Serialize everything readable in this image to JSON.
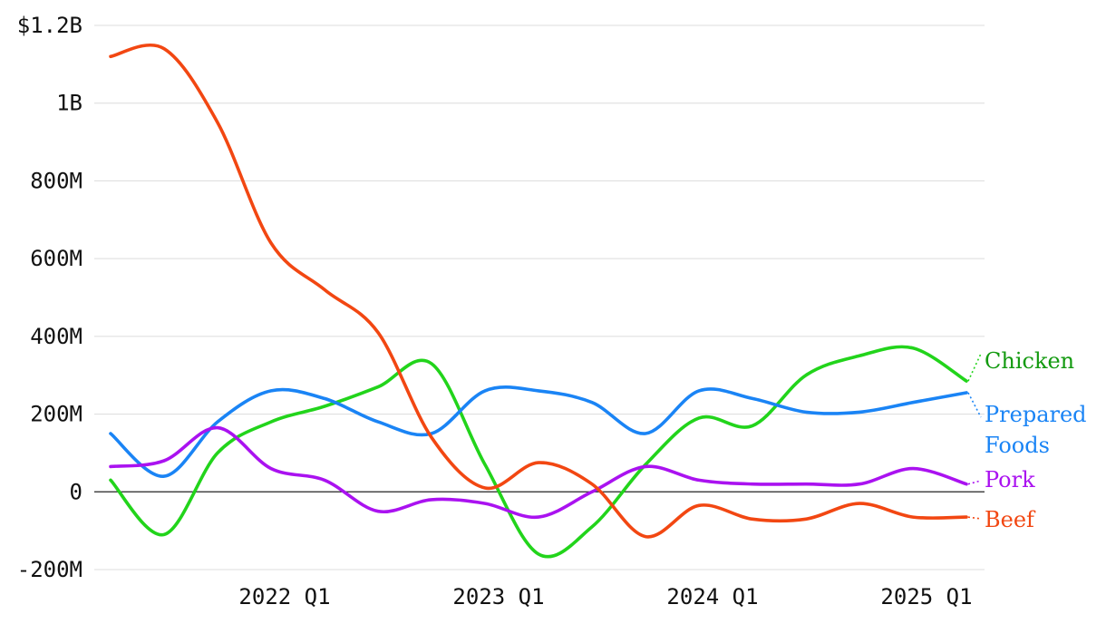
{
  "chart_data": {
    "type": "line",
    "y_ticks": [
      {
        "value": 1200000000,
        "label": "$1.2B"
      },
      {
        "value": 1000000000,
        "label": "1B"
      },
      {
        "value": 800000000,
        "label": "800M"
      },
      {
        "value": 600000000,
        "label": "600M"
      },
      {
        "value": 400000000,
        "label": "400M"
      },
      {
        "value": 200000000,
        "label": "200M"
      },
      {
        "value": 0,
        "label": "0"
      },
      {
        "value": -200000000,
        "label": "-200M"
      }
    ],
    "ylim": [
      -200000000,
      1200000000
    ],
    "x_ticks": [
      {
        "value": 2022.0,
        "label": "2022 Q1"
      },
      {
        "value": 2023.0,
        "label": "2023 Q1"
      },
      {
        "value": 2024.0,
        "label": "2024 Q1"
      },
      {
        "value": 2025.0,
        "label": "2025 Q1"
      }
    ],
    "xlim": [
      2021.25,
      2025.25
    ],
    "x": [
      2021.25,
      2021.5,
      2021.75,
      2022.0,
      2022.25,
      2022.5,
      2022.75,
      2023.0,
      2023.25,
      2023.5,
      2023.75,
      2024.0,
      2024.25,
      2024.5,
      2024.75,
      2025.0,
      2025.25
    ],
    "grid": true,
    "labels_at_line_ends": true,
    "series": [
      {
        "name": "Chicken",
        "color": "#22d41b",
        "label_color": "#139a10",
        "values": [
          30000000,
          -110000000,
          100000000,
          180000000,
          220000000,
          270000000,
          330000000,
          70000000,
          -160000000,
          -90000000,
          70000000,
          190000000,
          170000000,
          300000000,
          350000000,
          370000000,
          285000000
        ]
      },
      {
        "name": "Prepared Foods",
        "color": "#1a84f5",
        "label_color": "#1a84f5",
        "values": [
          150000000,
          40000000,
          180000000,
          260000000,
          240000000,
          180000000,
          150000000,
          260000000,
          260000000,
          230000000,
          150000000,
          260000000,
          240000000,
          205000000,
          205000000,
          230000000,
          255000000
        ]
      },
      {
        "name": "Pork",
        "color": "#aa12f0",
        "label_color": "#aa12f0",
        "values": [
          65000000,
          80000000,
          165000000,
          60000000,
          30000000,
          -50000000,
          -20000000,
          -30000000,
          -65000000,
          0,
          65000000,
          30000000,
          20000000,
          20000000,
          20000000,
          60000000,
          20000000
        ]
      },
      {
        "name": "Beef",
        "color": "#f24712",
        "label_color": "#f24712",
        "values": [
          1120000000,
          1140000000,
          950000000,
          640000000,
          520000000,
          410000000,
          140000000,
          10000000,
          75000000,
          20000000,
          -115000000,
          -35000000,
          -70000000,
          -70000000,
          -30000000,
          -65000000,
          -65000000
        ]
      }
    ]
  }
}
